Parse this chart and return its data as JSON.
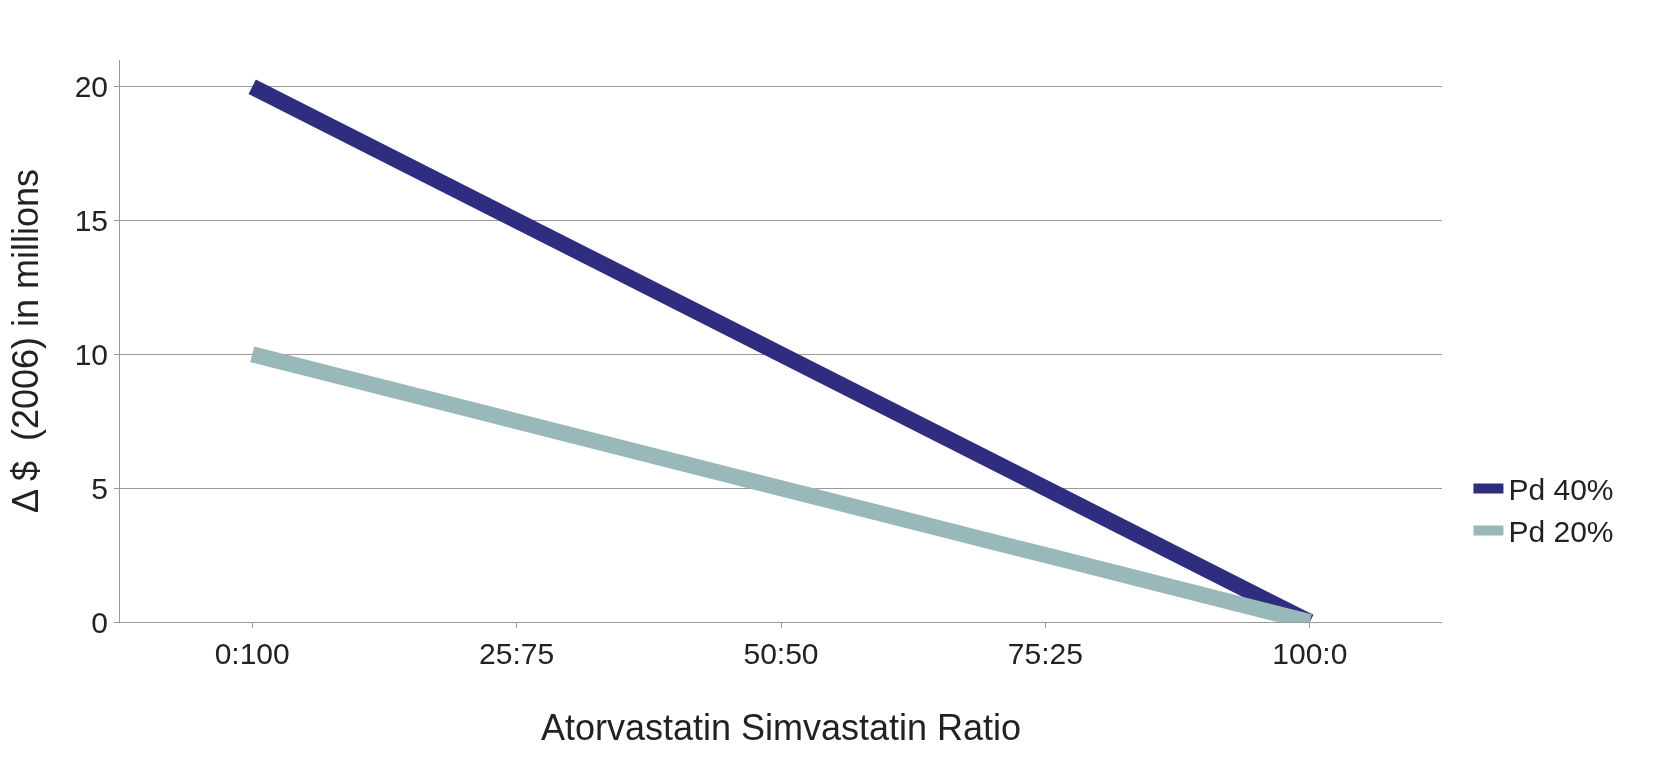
{
  "chart_data": {
    "type": "line",
    "xlabel": "Atorvastatin Simvastatin Ratio",
    "ylabel": "Δ $  (2006) in millions",
    "categories": [
      "0:100",
      "25:75",
      "50:50",
      "75:25",
      "100:0"
    ],
    "series": [
      {
        "name": "Pd 40%",
        "color": "#2e2d7f",
        "values": [
          20,
          15,
          10,
          5,
          0
        ]
      },
      {
        "name": "Pd 20%",
        "color": "#98b8b9",
        "values": [
          10,
          7.5,
          5,
          2.5,
          0
        ]
      }
    ],
    "ylim": [
      0,
      21
    ],
    "yticks": [
      0,
      5,
      10,
      15,
      20
    ],
    "grid": "y",
    "legend": "right",
    "marker": "none",
    "line_style": "solid"
  }
}
